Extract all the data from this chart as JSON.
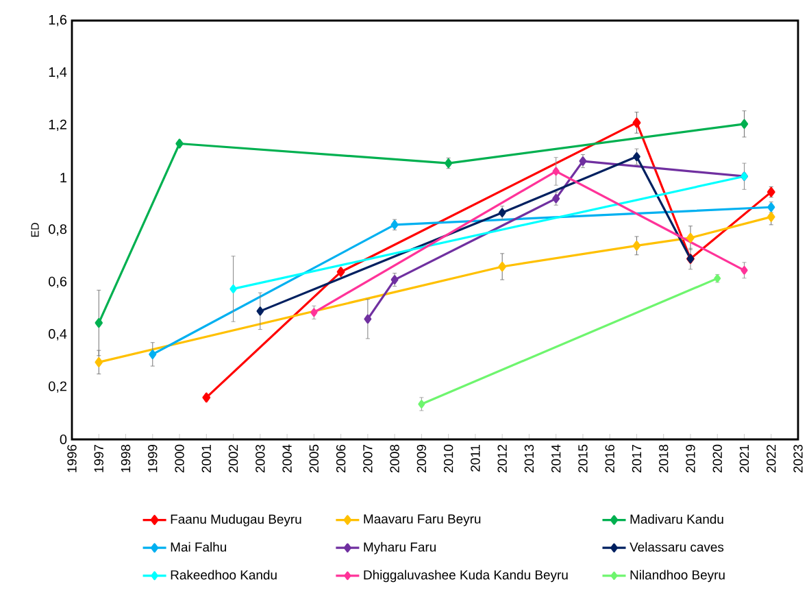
{
  "chart_data": {
    "type": "line",
    "ylabel": "ED",
    "marker": "diamond",
    "line_style": "solid",
    "grid": false,
    "legend": "bottom",
    "xlim": [
      1996,
      2023
    ],
    "xticks": [
      1996,
      1997,
      1998,
      1999,
      2000,
      2001,
      2002,
      2003,
      2004,
      2005,
      2006,
      2007,
      2008,
      2009,
      2010,
      2011,
      2012,
      2013,
      2014,
      2015,
      2016,
      2017,
      2018,
      2019,
      2020,
      2021,
      2022,
      2023
    ],
    "ylim": [
      0,
      1.6
    ],
    "yticks": [
      0,
      {
        "value": 0.2,
        "label": "0,2"
      },
      {
        "value": 0.4,
        "label": "0,4"
      },
      {
        "value": 0.6,
        "label": "0,6"
      },
      {
        "value": 0.8,
        "label": "0,8"
      },
      1,
      {
        "value": 1.2,
        "label": "1,2"
      },
      {
        "value": 1.4,
        "label": "1,4"
      },
      {
        "value": 1.6,
        "label": "1,6"
      }
    ],
    "series": [
      {
        "name": "Faanu Mudugau Beyru",
        "color": "#ff0000",
        "x": [
          2001,
          2006,
          2017,
          2019,
          2022
        ],
        "values": [
          0.16,
          0.64,
          1.21,
          0.69,
          0.945
        ],
        "errors": [
          null,
          null,
          0.04,
          null,
          0.02
        ]
      },
      {
        "name": "Maavaru Faru Beyru",
        "color": "#ffc000",
        "x": [
          1997,
          2012,
          2017,
          2019,
          2022
        ],
        "values": [
          0.295,
          0.66,
          0.74,
          0.77,
          0.85
        ],
        "errors": [
          0.045,
          0.05,
          0.035,
          0.045,
          0.03
        ]
      },
      {
        "name": "Madivaru Kandu",
        "color": "#00b050",
        "x": [
          1997,
          2000,
          2010,
          2021
        ],
        "values": [
          0.445,
          1.13,
          1.055,
          1.205
        ],
        "errors": [
          0.125,
          null,
          0.02,
          0.05
        ]
      },
      {
        "name": "Mai Falhu",
        "color": "#00b0f0",
        "x": [
          1999,
          2008,
          2022
        ],
        "values": [
          0.325,
          0.82,
          0.887
        ],
        "errors": [
          0.045,
          0.02,
          0.02
        ]
      },
      {
        "name": "Myharu Faru",
        "color": "#7030a0",
        "x": [
          2007,
          2008,
          2014,
          2015,
          2021
        ],
        "values": [
          0.46,
          0.61,
          0.92,
          1.063,
          1.005
        ],
        "errors": [
          0.075,
          0.025,
          0.025,
          0.025,
          null
        ]
      },
      {
        "name": "Velassaru caves",
        "color": "#002060",
        "x": [
          2003,
          2012,
          2017,
          2019
        ],
        "values": [
          0.49,
          0.866,
          1.08,
          0.69
        ],
        "errors": [
          0.07,
          0.025,
          0.03,
          0.04
        ]
      },
      {
        "name": "Rakeedhoo Kandu",
        "color": "#00ffff",
        "x": [
          2002,
          2021
        ],
        "values": [
          0.575,
          1.005
        ],
        "errors": [
          0.125,
          0.05
        ]
      },
      {
        "name": "Dhiggaluvashee Kuda Kandu Beyru",
        "color": "#ff3399",
        "x": [
          2005,
          2014,
          2021
        ],
        "values": [
          0.485,
          1.024,
          0.646
        ],
        "errors": [
          0.025,
          0.053,
          0.03
        ]
      },
      {
        "name": "Nilandhoo Beyru",
        "color": "#6ef56e",
        "x": [
          2009,
          2020
        ],
        "values": [
          0.135,
          0.615
        ],
        "errors": [
          0.025,
          0.015
        ]
      }
    ]
  }
}
